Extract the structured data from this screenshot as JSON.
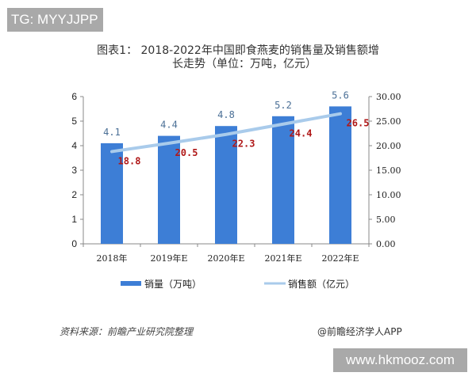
{
  "watermarks": {
    "top_left": "TG: MYYJJPP",
    "bottom_right": "www.hkmooz.com"
  },
  "title": {
    "line1": "图表1：  2018-2022年中国即食燕麦的销售量及销售额增",
    "line2": "长走势（单位：万吨，亿元）"
  },
  "footer": {
    "source": "资料来源：前瞻产业研究院整理",
    "brand": "@前瞻经济学人APP"
  },
  "colors": {
    "bar": "#3d7ed6",
    "line": "#a9cbeb",
    "bar_label": "#4a6f96",
    "line_label": "#b01818"
  },
  "chart_data": {
    "type": "bar",
    "title": "2018-2022年中国即食燕麦的销售量及销售额增长走势（单位：万吨，亿元）",
    "categories": [
      "2018年",
      "2019年E",
      "2020年E",
      "2021年E",
      "2022年E"
    ],
    "series": [
      {
        "name": "销量（万吨）",
        "type": "bar",
        "axis": "left",
        "values": [
          4.1,
          4.4,
          4.8,
          5.2,
          5.6
        ],
        "labels": [
          "4.1",
          "4.4",
          "4.8",
          "5.2",
          "5.6"
        ]
      },
      {
        "name": "销售额（亿元）",
        "type": "line",
        "axis": "right",
        "values": [
          18.8,
          20.5,
          22.3,
          24.4,
          26.5
        ],
        "labels": [
          "18.8",
          "20.5",
          "22.3",
          "24.4",
          "26.5"
        ]
      }
    ],
    "left_axis": {
      "ylim": [
        0,
        6
      ],
      "ticks": [
        "0",
        "1",
        "2",
        "3",
        "4",
        "5",
        "6"
      ]
    },
    "right_axis": {
      "ylim": [
        0,
        30
      ],
      "ticks": [
        "0.00",
        "5.00",
        "10.00",
        "15.00",
        "20.00",
        "25.00",
        "30.00"
      ]
    },
    "xlabel": "",
    "ylabel": "",
    "grid": false,
    "legend": {
      "position": "bottom",
      "entries": [
        "销量（万吨）",
        "销售额（亿元）"
      ]
    }
  }
}
